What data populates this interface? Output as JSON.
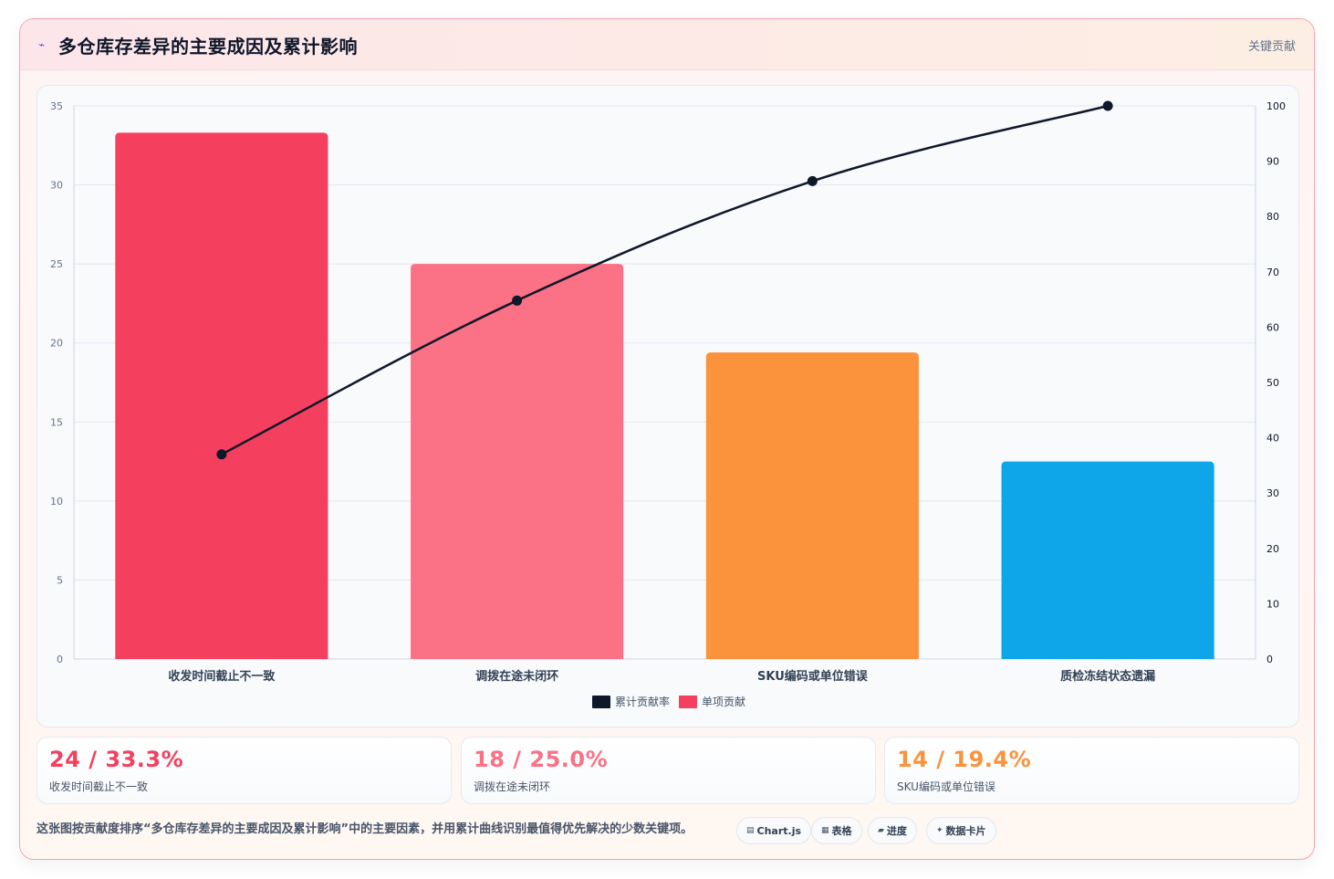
{
  "header": {
    "title": "多仓库存差异的主要成因及累计影响",
    "title_icon": "pulse-icon",
    "tag": "关键贡献"
  },
  "chart_data": {
    "type": "bar",
    "categories": [
      "收发时间截止不一致",
      "调拨在途未闭环",
      "SKU编码或单位错误",
      "质检冻结状态遗漏"
    ],
    "series": [
      {
        "name": "单项贡献",
        "values": [
          33.3,
          25.0,
          19.4,
          12.5
        ],
        "colors": [
          "#f43f5e",
          "#fb7185",
          "#fb923c",
          "#0ea5e9"
        ]
      },
      {
        "name": "累计贡献率",
        "type": "line",
        "values": [
          37,
          64.8,
          86.4,
          100
        ],
        "color": "#0f172a"
      }
    ],
    "ylim": [
      0,
      35
    ],
    "y_ticks": [
      0,
      5,
      10,
      15,
      20,
      25,
      30,
      35
    ],
    "y2lim": [
      0,
      100
    ],
    "y2_ticks": [
      0,
      10,
      20,
      30,
      40,
      50,
      60,
      70,
      80,
      90,
      100
    ],
    "legend": {
      "position": "bottom"
    },
    "grid": true
  },
  "stats": [
    {
      "value": "24 / 33.3%",
      "label": "收发时间截止不一致",
      "color": "#f43f5e"
    },
    {
      "value": "18 / 25.0%",
      "label": "调拨在途未闭环",
      "color": "#fb7185"
    },
    {
      "value": "14 / 19.4%",
      "label": "SKU编码或单位错误",
      "color": "#fb923c"
    }
  ],
  "footer": {
    "note": "这张图按贡献度排序“多仓库存差异的主要成因及累计影响”中的主要因素，并用累计曲线识别最值得优先解决的少数关键项。",
    "pills": [
      {
        "icon": "chart-icon",
        "label": "Chart.js"
      },
      {
        "icon": "table-icon",
        "label": "表格"
      },
      {
        "icon": "progress-icon",
        "label": "进度"
      },
      {
        "icon": "sparkle-icon",
        "label": "数据卡片"
      }
    ]
  }
}
